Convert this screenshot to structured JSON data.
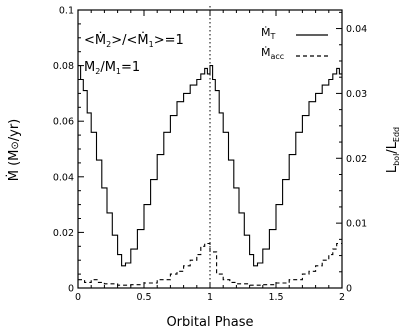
{
  "chart_data": {
    "type": "line",
    "title": "",
    "xlabel": "Orbital Phase",
    "ylabel": "Ṁ (M⊙/yr)",
    "ylabel_parts": {
      "dot": "Ṁ",
      "open": " (M",
      "sun": "⊙",
      "close": "/yr)"
    },
    "y2label": "Lbol/LEdd",
    "y2label_parts": {
      "main": "L",
      "sub1": "bol",
      "slash": "/L",
      "sub2": "Edd"
    },
    "xlim": [
      0,
      2
    ],
    "ylim": [
      0,
      0.1
    ],
    "y2lim": [
      0,
      0.04286
    ],
    "xticks": [
      "0",
      "0.5",
      "1",
      "1.5",
      "2"
    ],
    "yticks": [
      "0",
      "0.02",
      "0.04",
      "0.06",
      "0.08",
      "0.1"
    ],
    "y2ticks": [
      "0",
      "0.01",
      "0.02",
      "0.03",
      "0.04"
    ],
    "annotations": {
      "ratio_mdot": {
        "a": "<Ṁ",
        "s2": "2",
        "b": ">/<Ṁ",
        "s1": "1",
        "c": ">=1"
      },
      "ratio_mass": {
        "a": "M",
        "s2": "2",
        "b": "/M",
        "s1": "1",
        "c": "=1"
      }
    },
    "grid": false,
    "legend_position": "top-right",
    "vertical_marker": {
      "x": 1,
      "style": "dotted"
    },
    "series": [
      {
        "name": "ṀT",
        "name_parts": {
          "main": "Ṁ",
          "sub": "T"
        },
        "style": "solid",
        "step": true,
        "x": [
          0.0,
          0.02,
          0.04,
          0.07,
          0.1,
          0.14,
          0.18,
          0.22,
          0.26,
          0.3,
          0.33,
          0.36,
          0.4,
          0.45,
          0.5,
          0.55,
          0.6,
          0.65,
          0.7,
          0.75,
          0.8,
          0.85,
          0.9,
          0.93,
          0.96,
          0.98,
          1.0,
          1.02,
          1.04,
          1.07,
          1.1,
          1.14,
          1.18,
          1.22,
          1.26,
          1.3,
          1.33,
          1.36,
          1.4,
          1.45,
          1.5,
          1.55,
          1.6,
          1.65,
          1.7,
          1.75,
          1.8,
          1.85,
          1.9,
          1.93,
          1.96,
          1.98,
          2.0
        ],
        "values": [
          0.08,
          0.075,
          0.071,
          0.063,
          0.056,
          0.046,
          0.036,
          0.027,
          0.019,
          0.012,
          0.008,
          0.009,
          0.014,
          0.021,
          0.03,
          0.039,
          0.048,
          0.056,
          0.062,
          0.067,
          0.07,
          0.073,
          0.075,
          0.077,
          0.079,
          0.077,
          0.08,
          0.075,
          0.071,
          0.063,
          0.056,
          0.046,
          0.036,
          0.027,
          0.019,
          0.012,
          0.008,
          0.009,
          0.014,
          0.021,
          0.03,
          0.039,
          0.048,
          0.056,
          0.062,
          0.067,
          0.07,
          0.073,
          0.075,
          0.077,
          0.079,
          0.077,
          0.077
        ]
      },
      {
        "name": "Ṁacc",
        "name_parts": {
          "main": "Ṁ",
          "sub": "acc"
        },
        "style": "dashed",
        "step": true,
        "x": [
          0.0,
          0.05,
          0.1,
          0.15,
          0.2,
          0.3,
          0.4,
          0.5,
          0.6,
          0.7,
          0.75,
          0.8,
          0.85,
          0.9,
          0.93,
          0.96,
          1.0,
          1.05,
          1.1,
          1.15,
          1.2,
          1.3,
          1.4,
          1.5,
          1.6,
          1.7,
          1.75,
          1.8,
          1.85,
          1.9,
          1.93,
          1.96,
          2.0
        ],
        "values": [
          0.003,
          0.002,
          0.003,
          0.002,
          0.0015,
          0.001,
          0.0012,
          0.0018,
          0.003,
          0.005,
          0.006,
          0.008,
          0.01,
          0.012,
          0.015,
          0.016,
          0.013,
          0.005,
          0.003,
          0.002,
          0.0015,
          0.001,
          0.0012,
          0.0018,
          0.003,
          0.005,
          0.006,
          0.008,
          0.01,
          0.012,
          0.014,
          0.016,
          0.016
        ]
      }
    ]
  }
}
